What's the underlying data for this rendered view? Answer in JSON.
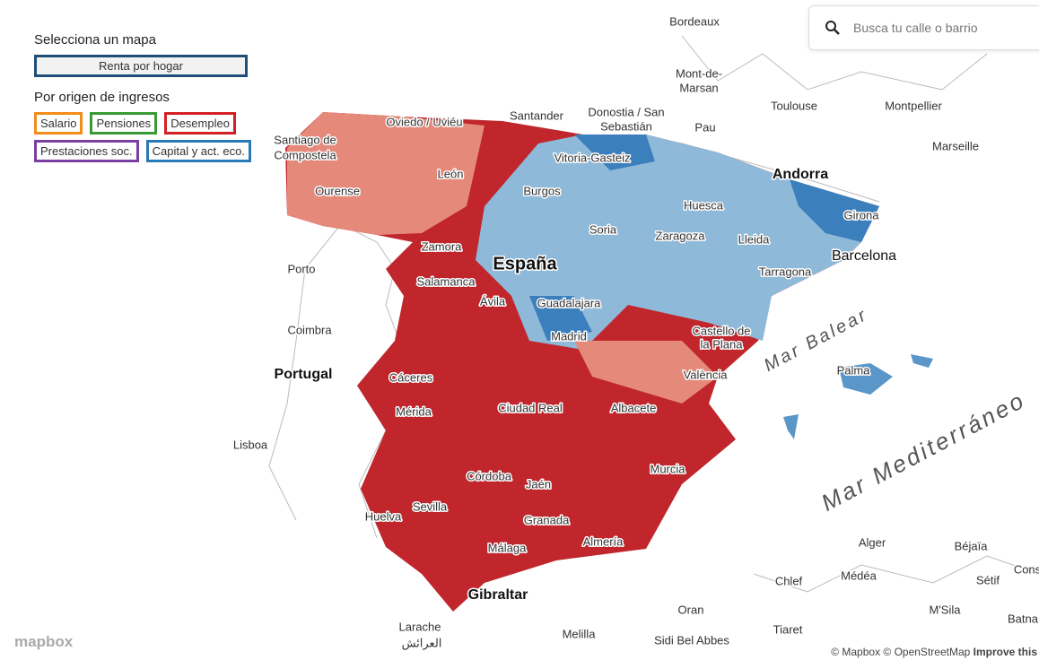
{
  "panel": {
    "title": "Selecciona un mapa",
    "selected": "Renta por hogar",
    "section": "Por origen de ingresos",
    "buttons": [
      "Salario",
      "Pensiones",
      "Desempleo",
      "Prestaciones soc.",
      "Capital y act. eco."
    ]
  },
  "search": {
    "placeholder": "Busca tu calle o barrio"
  },
  "map": {
    "labels": [
      "Bordeaux",
      "Mont-de-",
      "Marsan",
      "Toulouse",
      "Montpellier",
      "Marseille",
      "Pau",
      "Donostia / San",
      "Sebastián",
      "Santander",
      "Oviedo / Uviéu",
      "Santiago de",
      "Compostela",
      "Vitoria-Gasteiz",
      "León",
      "Burgos",
      "Andorra",
      "Ourense",
      "Huesca",
      "Girona",
      "Soria",
      "Zaragoza",
      "Lleida",
      "Zamora",
      "Barcelona",
      "Tarragona",
      "España",
      "Porto",
      "Salamanca",
      "Ávila",
      "Guadalajara",
      "Madrid",
      "Coimbra",
      "Castello de",
      "la Plana",
      "Mar Balear",
      "Palma",
      "Portugal",
      "València",
      "Cáceres",
      "Mérida",
      "Ciudad Real",
      "Albacete",
      "Lisboa",
      "Murcia",
      "Córdoba",
      "Jaén",
      "Mar Mediterráneo",
      "Huelva",
      "Sevilla",
      "Granada",
      "Almería",
      "Alger",
      "Béjaïa",
      "Málaga",
      "Médéa",
      "Chlef",
      "Sétif",
      "Cons",
      "Gibraltar",
      "Oran",
      "M'Sila",
      "Batna",
      "Larache",
      "العرائش",
      "Melilla",
      "Sidi Bel Abbes",
      "Tiaret"
    ]
  },
  "logo": "mapbox",
  "attribution": [
    "© Mapbox © OpenStreetMap",
    "Improve this"
  ]
}
